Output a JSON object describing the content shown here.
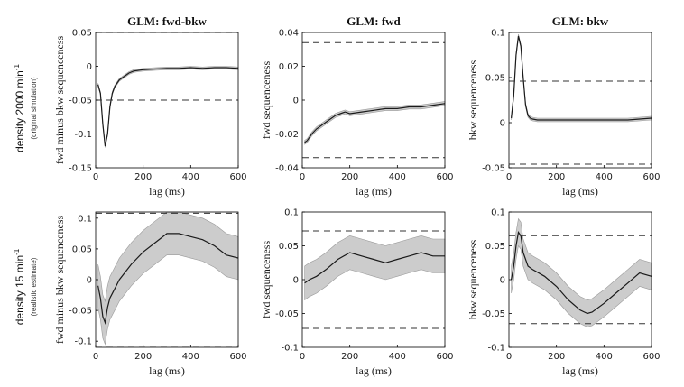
{
  "rows": [
    {
      "label": "density 2000 min",
      "sup": "-1",
      "sub": "(original simulation)"
    },
    {
      "label": "density 15 min",
      "sup": "-1",
      "sub": "(realistic estimate)"
    }
  ],
  "colors": {
    "band": "#cccccc",
    "line": "#1a1a1a",
    "threshold": "#333333",
    "axis": "#000000"
  },
  "chart_data": [
    {
      "type": "line",
      "title": "GLM: fwd-bkw",
      "xlabel": "lag (ms)",
      "ylabel": "fwd minus bkw sequenceness",
      "xlim": [
        0,
        600
      ],
      "ylim": [
        -0.15,
        0.05
      ],
      "xticks": [
        0,
        200,
        400,
        600
      ],
      "xticklabels": [
        "0",
        "200",
        "400",
        "600"
      ],
      "yticks": [
        -0.15,
        -0.1,
        -0.05,
        0,
        0.05
      ],
      "yticklabels": [
        "-0.15",
        "-0.1",
        "-0.05",
        "0",
        "0.05"
      ],
      "thresholds": [
        0.05,
        -0.05
      ],
      "series": [
        {
          "x": [
            10,
            20,
            30,
            40,
            50,
            60,
            70,
            80,
            90,
            100,
            120,
            140,
            160,
            180,
            200,
            250,
            300,
            350,
            400,
            450,
            500,
            550,
            600
          ],
          "mean": [
            -0.027,
            -0.04,
            -0.085,
            -0.118,
            -0.1,
            -0.06,
            -0.04,
            -0.03,
            -0.025,
            -0.02,
            -0.015,
            -0.01,
            -0.007,
            -0.006,
            -0.005,
            -0.004,
            -0.003,
            -0.003,
            -0.002,
            -0.003,
            -0.002,
            -0.002,
            -0.003
          ],
          "ci": 0.002
        }
      ]
    },
    {
      "type": "line",
      "title": "GLM: fwd",
      "xlabel": "lag (ms)",
      "ylabel": "fwd sequenceness",
      "xlim": [
        0,
        600
      ],
      "ylim": [
        -0.04,
        0.04
      ],
      "xticks": [
        0,
        200,
        400,
        600
      ],
      "xticklabels": [
        "0",
        "200",
        "400",
        "600"
      ],
      "yticks": [
        -0.04,
        -0.02,
        0,
        0.02,
        0.04
      ],
      "yticklabels": [
        "-0.04",
        "-0.02",
        "0",
        "0.02",
        "0.04"
      ],
      "thresholds": [
        0.034,
        -0.034
      ],
      "series": [
        {
          "x": [
            10,
            20,
            30,
            40,
            60,
            80,
            100,
            120,
            140,
            160,
            180,
            200,
            250,
            300,
            350,
            400,
            450,
            500,
            550,
            600
          ],
          "mean": [
            -0.025,
            -0.024,
            -0.022,
            -0.02,
            -0.017,
            -0.015,
            -0.013,
            -0.011,
            -0.009,
            -0.008,
            -0.007,
            -0.008,
            -0.007,
            -0.006,
            -0.005,
            -0.005,
            -0.004,
            -0.004,
            -0.003,
            -0.002
          ],
          "ci": 0.0012
        }
      ]
    },
    {
      "type": "line",
      "title": "GLM: bkw",
      "xlabel": "lag (ms)",
      "ylabel": "bkw sequenceness",
      "xlim": [
        0,
        600
      ],
      "ylim": [
        -0.05,
        0.1
      ],
      "xticks": [
        0,
        200,
        400,
        600
      ],
      "xticklabels": [
        "0",
        "200",
        "400",
        "600"
      ],
      "yticks": [
        -0.05,
        0,
        0.05,
        0.1
      ],
      "yticklabels": [
        "-0.05",
        "0",
        "0.05",
        "0.1"
      ],
      "thresholds": [
        0.046,
        -0.046
      ],
      "series": [
        {
          "x": [
            10,
            20,
            30,
            40,
            50,
            60,
            70,
            80,
            90,
            100,
            120,
            140,
            160,
            200,
            250,
            300,
            350,
            400,
            450,
            500,
            550,
            600
          ],
          "mean": [
            0.005,
            0.03,
            0.075,
            0.096,
            0.085,
            0.05,
            0.02,
            0.008,
            0.005,
            0.004,
            0.003,
            0.003,
            0.003,
            0.003,
            0.003,
            0.003,
            0.003,
            0.003,
            0.003,
            0.003,
            0.004,
            0.005
          ],
          "ci": 0.002
        }
      ]
    },
    {
      "type": "area",
      "title": "",
      "xlabel": "lag (ms)",
      "ylabel": "fwd minus bkw sequenceness",
      "xlim": [
        0,
        600
      ],
      "ylim": [
        -0.11,
        0.11
      ],
      "xticks": [
        0,
        200,
        400,
        600
      ],
      "xticklabels": [
        "0",
        "200",
        "400",
        "600"
      ],
      "yticks": [
        -0.1,
        -0.05,
        0,
        0.05,
        0.1
      ],
      "yticklabels": [
        "-0.1",
        "-0.05",
        "0",
        "0.05",
        "0.1"
      ],
      "thresholds": [
        0.108,
        -0.108
      ],
      "series": [
        {
          "x": [
            10,
            20,
            30,
            40,
            50,
            60,
            80,
            100,
            150,
            200,
            250,
            300,
            350,
            400,
            450,
            500,
            550,
            600
          ],
          "mean": [
            -0.01,
            -0.03,
            -0.06,
            -0.07,
            -0.045,
            -0.03,
            -0.015,
            0,
            0.025,
            0.045,
            0.06,
            0.075,
            0.075,
            0.07,
            0.065,
            0.055,
            0.04,
            0.035
          ],
          "ci": 0.035
        }
      ]
    },
    {
      "type": "area",
      "title": "",
      "xlabel": "lag (ms)",
      "ylabel": "fwd sequenceness",
      "xlim": [
        0,
        600
      ],
      "ylim": [
        -0.1,
        0.1
      ],
      "xticks": [
        0,
        200,
        400,
        600
      ],
      "xticklabels": [
        "0",
        "200",
        "400",
        "600"
      ],
      "yticks": [
        -0.1,
        -0.05,
        0,
        0.05,
        0.1
      ],
      "yticklabels": [
        "-0.1",
        "-0.05",
        "0",
        "0.05",
        "0.1"
      ],
      "thresholds": [
        0.072,
        -0.072
      ],
      "series": [
        {
          "x": [
            10,
            30,
            60,
            100,
            150,
            200,
            250,
            300,
            350,
            400,
            450,
            500,
            550,
            600
          ],
          "mean": [
            -0.005,
            0,
            0.005,
            0.015,
            0.03,
            0.04,
            0.035,
            0.03,
            0.025,
            0.03,
            0.035,
            0.04,
            0.035,
            0.035
          ],
          "ci": 0.025
        }
      ]
    },
    {
      "type": "area",
      "title": "",
      "xlabel": "lag (ms)",
      "ylabel": "bkw sequenceness",
      "xlim": [
        0,
        600
      ],
      "ylim": [
        -0.1,
        0.1
      ],
      "xticks": [
        0,
        200,
        400,
        600
      ],
      "xticklabels": [
        "0",
        "200",
        "400",
        "600"
      ],
      "yticks": [
        -0.1,
        -0.05,
        0,
        0.05,
        0.1
      ],
      "yticklabels": [
        "-0.1",
        "-0.05",
        "0",
        "0.05",
        "0.1"
      ],
      "thresholds": [
        0.065,
        -0.065
      ],
      "series": [
        {
          "x": [
            10,
            20,
            30,
            40,
            50,
            60,
            80,
            100,
            150,
            200,
            250,
            300,
            330,
            350,
            400,
            450,
            500,
            550,
            600
          ],
          "mean": [
            0,
            0.02,
            0.05,
            0.07,
            0.065,
            0.04,
            0.02,
            0.015,
            0.005,
            -0.01,
            -0.03,
            -0.045,
            -0.05,
            -0.048,
            -0.035,
            -0.02,
            -0.005,
            0.01,
            0.005
          ],
          "ci": 0.02
        }
      ]
    }
  ]
}
